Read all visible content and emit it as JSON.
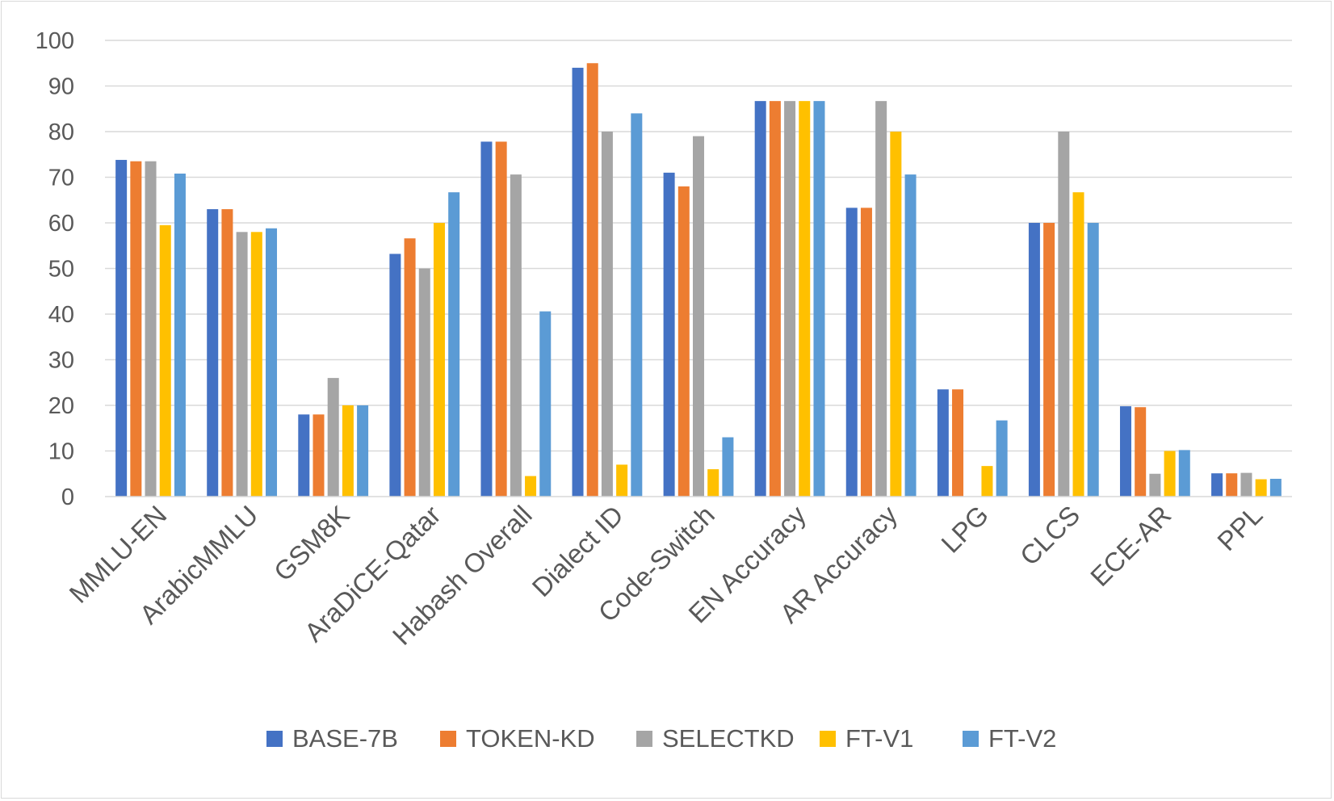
{
  "chart_data": {
    "type": "bar",
    "title": "",
    "xlabel": "",
    "ylabel": "",
    "ylim": [
      0,
      100
    ],
    "yticks": [
      0,
      10,
      20,
      30,
      40,
      50,
      60,
      70,
      80,
      90,
      100
    ],
    "grid": true,
    "legend_position": "bottom",
    "categories": [
      "MMLU-EN",
      "ArabicMMLU",
      "GSM8K",
      "AraDiCE-Qatar",
      "Habash Overall",
      "Dialect ID",
      "Code-Switch",
      "EN Accuracy",
      "AR Accuracy",
      "LPG",
      "CLCS",
      "ECE-AR",
      "PPL"
    ],
    "series": [
      {
        "name": "BASE-7B",
        "color": "#4472C4",
        "values": [
          73.8,
          63.0,
          18.0,
          53.2,
          77.8,
          94.0,
          71.0,
          86.7,
          63.3,
          23.5,
          60.0,
          19.8,
          5.1
        ]
      },
      {
        "name": "TOKEN-KD",
        "color": "#ED7D31",
        "values": [
          73.5,
          63.0,
          18.0,
          56.6,
          77.8,
          95.0,
          68.0,
          86.7,
          63.3,
          23.5,
          60.0,
          19.6,
          5.1
        ]
      },
      {
        "name": "SELECTKD",
        "color": "#A5A5A5",
        "values": [
          73.5,
          58.0,
          26.0,
          50.0,
          70.6,
          80.0,
          79.0,
          86.7,
          86.7,
          0,
          80.0,
          5.0,
          5.2
        ]
      },
      {
        "name": "FT-V1",
        "color": "#FFC000",
        "values": [
          59.5,
          58.0,
          20.0,
          60.0,
          4.5,
          7.0,
          6.0,
          86.7,
          80.0,
          6.7,
          66.7,
          10.0,
          3.8
        ]
      },
      {
        "name": "FT-V2",
        "color": "#5B9BD5",
        "values": [
          70.8,
          58.8,
          20.0,
          66.7,
          40.6,
          84.0,
          13.0,
          86.7,
          70.6,
          16.7,
          60.0,
          10.2,
          3.9
        ]
      }
    ]
  }
}
